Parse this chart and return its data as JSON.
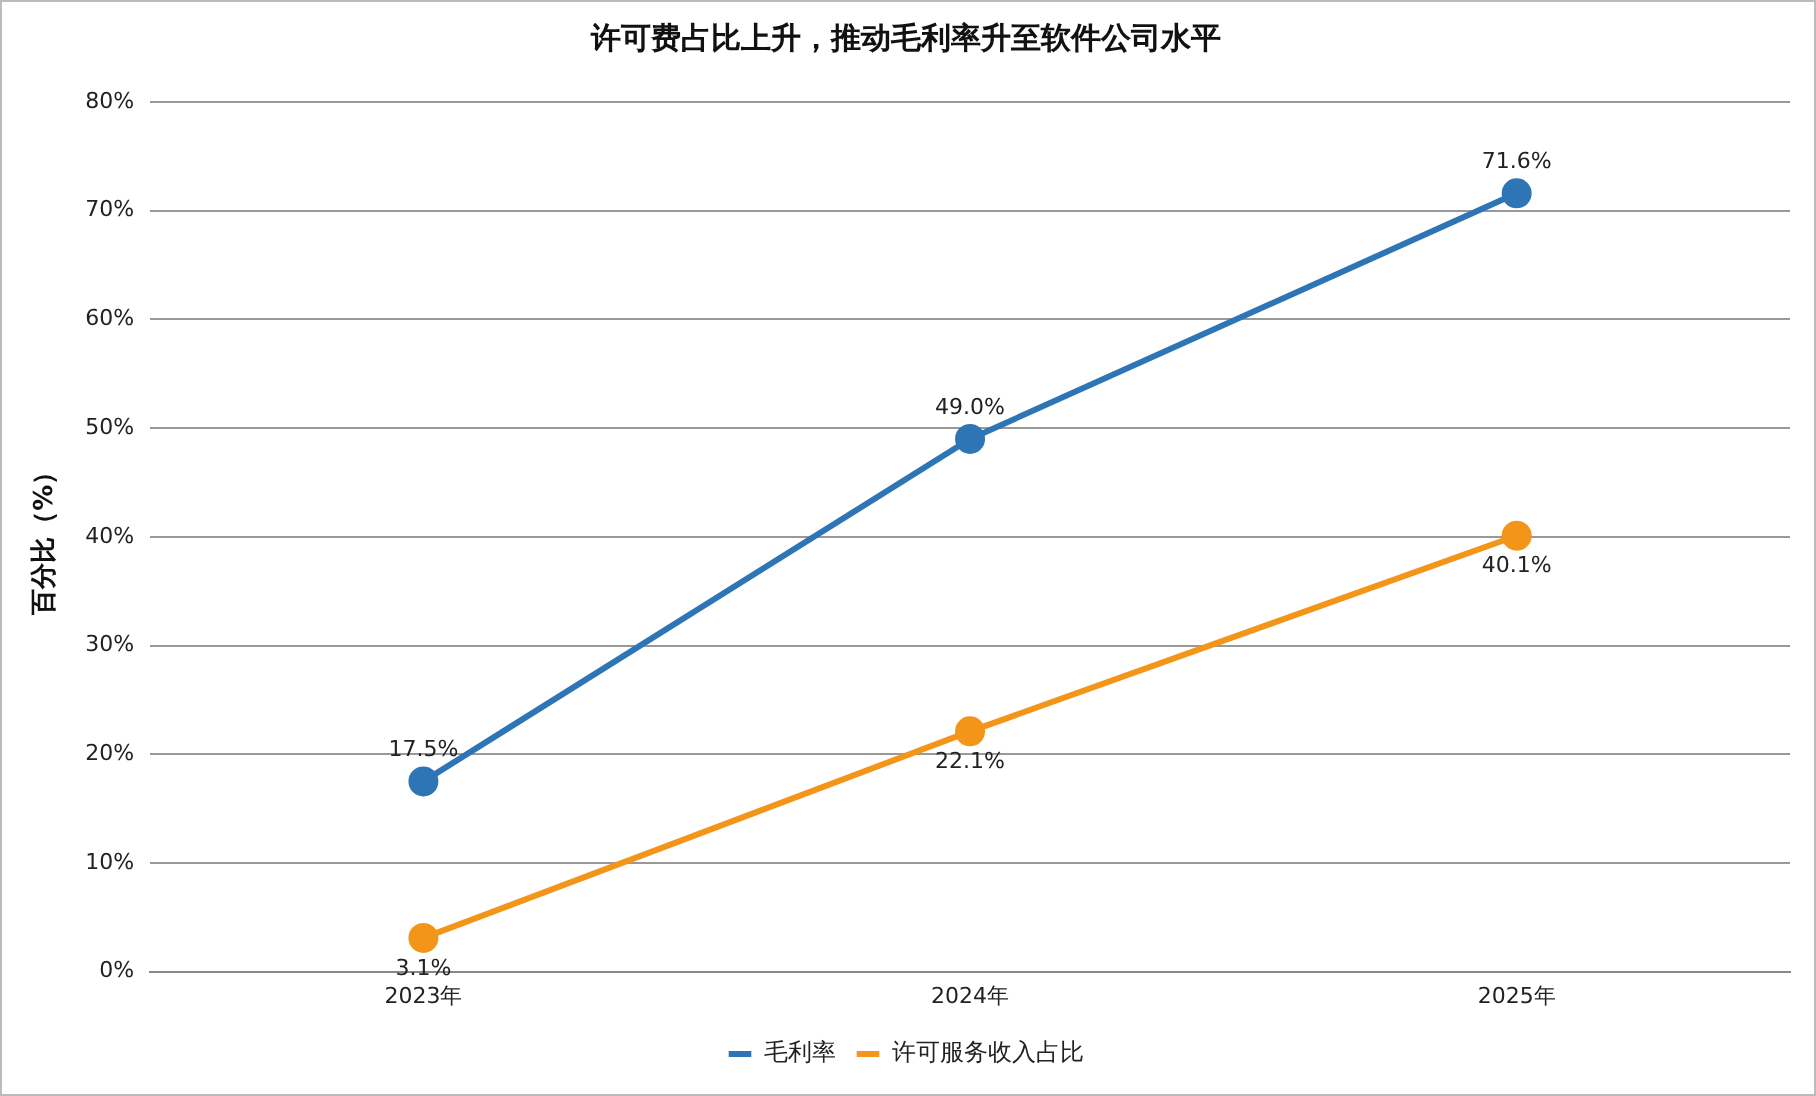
{
  "chart_data": {
    "type": "line",
    "title": "许可费占比上升，推动毛利率升至软件公司水平",
    "ylabel": "百分比（%）",
    "categories": [
      "2023年",
      "2024年",
      "2025年"
    ],
    "series": [
      {
        "name": "毛利率",
        "color": "#2e75b6",
        "values": [
          17.5,
          49.0,
          71.6
        ],
        "value_labels": [
          "17.5%",
          "49.0%",
          "71.6%"
        ]
      },
      {
        "name": "许可服务收入占比",
        "color": "#f39519",
        "values": [
          3.1,
          22.1,
          40.1
        ],
        "value_labels": [
          "3.1%",
          "22.1%",
          "40.1%"
        ]
      }
    ],
    "ylim": [
      0,
      80
    ],
    "yticks": [
      {
        "value": 0,
        "label": "0%"
      },
      {
        "value": 10,
        "label": "10%"
      },
      {
        "value": 20,
        "label": "20%"
      },
      {
        "value": 30,
        "label": "30%"
      },
      {
        "value": 40,
        "label": "40%"
      },
      {
        "value": 50,
        "label": "50%"
      },
      {
        "value": 60,
        "label": "60%"
      },
      {
        "value": 70,
        "label": "70%"
      },
      {
        "value": 80,
        "label": "80%"
      }
    ],
    "grid": "y",
    "legend": "bottom",
    "marker": "circle",
    "line_style": "solid"
  }
}
